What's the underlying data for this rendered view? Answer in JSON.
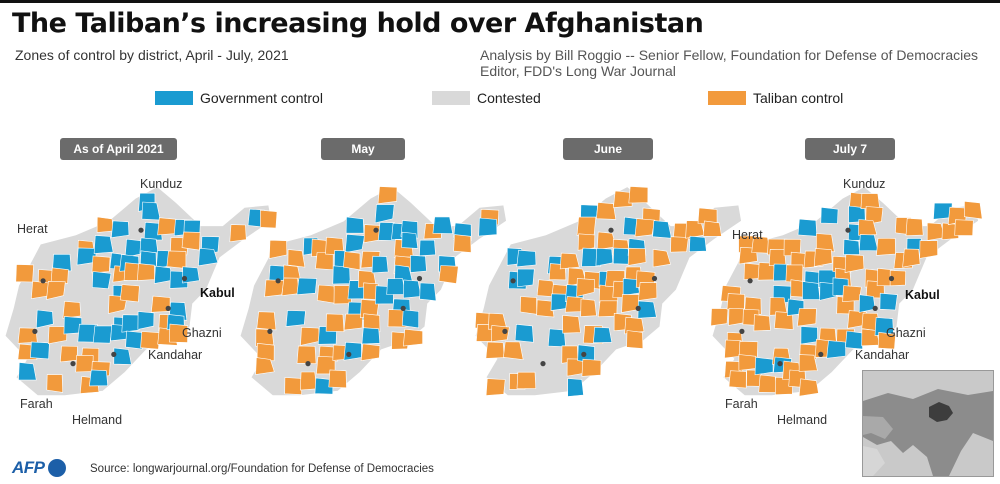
{
  "title": "The Taliban’s increasing hold over Afghanistan",
  "subtitle": "Zones of control by district, April - July, 2021",
  "credit_line1": "Analysis by Bill Roggio -- Senior Fellow, Foundation for Defense of Democracies",
  "credit_line2": "Editor, FDD's Long War Journal",
  "legend": [
    {
      "label": "Government control",
      "color": "#1a9bd1"
    },
    {
      "label": "Contested",
      "color": "#d9d9d9"
    },
    {
      "label": "Taliban control",
      "color": "#f29a3c"
    }
  ],
  "panels": [
    {
      "label": "As of April 2021",
      "government": 0.34,
      "taliban": 0.26
    },
    {
      "label": "May",
      "government": 0.3,
      "taliban": 0.33
    },
    {
      "label": "June",
      "government": 0.24,
      "taliban": 0.4
    },
    {
      "label": "July 7",
      "government": 0.16,
      "taliban": 0.54
    }
  ],
  "cities": {
    "kunduz": "Kunduz",
    "herat": "Herat",
    "kabul": "Kabul",
    "ghazni": "Ghazni",
    "kandahar": "Kandahar",
    "farah": "Farah",
    "helmand": "Helmand"
  },
  "source": "Source: longwarjournal.org/Foundation for Defense of Democracies",
  "logo": "AFP",
  "colors": {
    "government": "#1a9bd1",
    "contested": "#d9d9d9",
    "taliban": "#f29a3c",
    "pill": "#6b6b6b"
  }
}
